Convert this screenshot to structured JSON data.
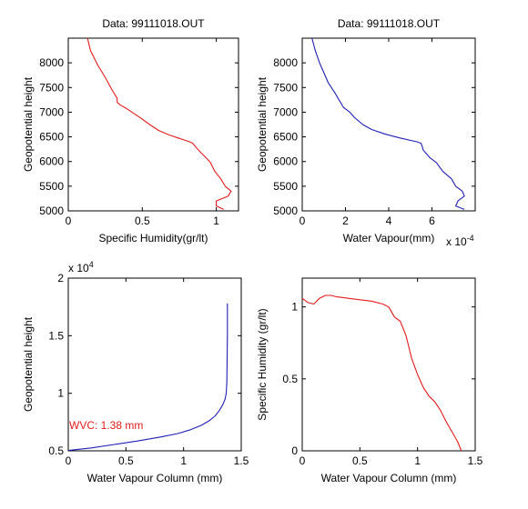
{
  "figure": {
    "background": "#ffffff"
  },
  "chart_data": [
    {
      "type": "line",
      "title": "Data: 99111018.OUT",
      "xlabel": "Specific Humidity(gr/lt)",
      "ylabel": "Geopotential height",
      "xlim": [
        0,
        1.15
      ],
      "ylim": [
        5000,
        8500
      ],
      "xticks": [
        "0",
        "0.5",
        "1"
      ],
      "yticks": [
        "5000",
        "5500",
        "6000",
        "6500",
        "7000",
        "7500",
        "8000"
      ],
      "xtick_values": [
        0,
        0.5,
        1
      ],
      "ytick_values": [
        5000,
        5500,
        6000,
        6500,
        7000,
        7500,
        8000
      ],
      "color": "#e41a1c",
      "series": [
        {
          "x": [
            1.05,
            1.0,
            1.0,
            1.08,
            1.1,
            1.06,
            1.03,
            0.99,
            0.96,
            0.93,
            0.88,
            0.84,
            0.82,
            0.79,
            0.74,
            0.68,
            0.61,
            0.55,
            0.49,
            0.43,
            0.39,
            0.35,
            0.33,
            0.33,
            0.29,
            0.25,
            0.2,
            0.15,
            0.13
          ],
          "y": [
            5030,
            5100,
            5200,
            5300,
            5400,
            5500,
            5650,
            5800,
            5980,
            6080,
            6230,
            6370,
            6400,
            6430,
            6480,
            6540,
            6630,
            6750,
            6880,
            7000,
            7080,
            7150,
            7200,
            7280,
            7480,
            7700,
            7950,
            8250,
            8500
          ]
        }
      ]
    },
    {
      "type": "line",
      "title": "Data: 99111018.OUT",
      "xlabel": "Water Vapour(mm)",
      "ylabel": "Geopotential height",
      "xlim": [
        0,
        8
      ],
      "ylim": [
        5000,
        8500
      ],
      "xticks": [
        "0",
        "2",
        "4",
        "6"
      ],
      "yticks": [
        "5000",
        "5500",
        "6000",
        "6500",
        "7000",
        "7500",
        "8000"
      ],
      "xtick_values": [
        0,
        2,
        4,
        6
      ],
      "ytick_values": [
        5000,
        5500,
        6000,
        6500,
        7000,
        7500,
        8000
      ],
      "x_scale_label": "x 10",
      "x_scale_exponent": "-4",
      "color": "#1f1fb4",
      "series": [
        {
          "x": [
            7.5,
            7.1,
            7.2,
            7.5,
            7.4,
            7.1,
            6.9,
            6.5,
            6.2,
            5.9,
            5.6,
            5.5,
            5.3,
            4.5,
            3.8,
            3.2,
            2.8,
            2.4,
            2.2,
            1.9,
            1.8,
            1.7,
            1.5,
            1.2,
            1.0,
            0.8,
            0.6,
            0.45
          ],
          "y": [
            5030,
            5100,
            5200,
            5300,
            5400,
            5500,
            5650,
            5800,
            5980,
            6080,
            6230,
            6370,
            6400,
            6480,
            6560,
            6650,
            6750,
            6900,
            7000,
            7100,
            7180,
            7250,
            7400,
            7600,
            7800,
            8000,
            8250,
            8500
          ]
        }
      ]
    },
    {
      "type": "line",
      "title": "",
      "xlabel": "Water Vapour Column (mm)",
      "ylabel": "Geopotential height",
      "xlim": [
        0,
        1.5
      ],
      "ylim": [
        0.5,
        2
      ],
      "xticks": [
        "0",
        "0.5",
        "1",
        "1.5"
      ],
      "yticks": [
        "0.5",
        "1",
        "1.5",
        "2"
      ],
      "xtick_values": [
        0,
        0.5,
        1,
        1.5
      ],
      "ytick_values": [
        0.5,
        1,
        1.5,
        2
      ],
      "y_scale_label": "x 10",
      "y_scale_exponent": "4",
      "annotation": "WVC: 1.38 mm",
      "annotation_color": "#e41a1c",
      "color": "#1f1fb4",
      "series": [
        {
          "x": [
            0,
            0.2,
            0.4,
            0.6,
            0.8,
            0.95,
            1.05,
            1.15,
            1.22,
            1.27,
            1.31,
            1.34,
            1.36,
            1.37,
            1.375,
            1.38,
            1.38
          ],
          "y": [
            0.503,
            0.525,
            0.555,
            0.585,
            0.62,
            0.65,
            0.68,
            0.72,
            0.76,
            0.8,
            0.85,
            0.9,
            0.95,
            1.0,
            1.1,
            1.5,
            1.78
          ]
        }
      ]
    },
    {
      "type": "line",
      "title": "",
      "xlabel": "Water Vapour Column (mm)",
      "ylabel": "Specific Humidity (gr/lt)",
      "xlim": [
        0,
        1.5
      ],
      "ylim": [
        0,
        1.2
      ],
      "xticks": [
        "0",
        "0.5",
        "1",
        "1.5"
      ],
      "yticks": [
        "0",
        "0.5",
        "1"
      ],
      "xtick_values": [
        0,
        0.5,
        1,
        1.5
      ],
      "ytick_values": [
        0,
        0.5,
        1
      ],
      "color": "#e41a1c",
      "series": [
        {
          "x": [
            0,
            0.05,
            0.1,
            0.15,
            0.2,
            0.25,
            0.3,
            0.4,
            0.5,
            0.6,
            0.7,
            0.75,
            0.8,
            0.85,
            0.9,
            0.95,
            1.0,
            1.05,
            1.1,
            1.15,
            1.2,
            1.25,
            1.3,
            1.35,
            1.38
          ],
          "y": [
            1.06,
            1.03,
            1.02,
            1.06,
            1.08,
            1.08,
            1.07,
            1.06,
            1.05,
            1.04,
            1.02,
            1.0,
            0.93,
            0.9,
            0.8,
            0.64,
            0.53,
            0.44,
            0.38,
            0.34,
            0.28,
            0.2,
            0.13,
            0.06,
            0.0
          ]
        }
      ]
    }
  ]
}
